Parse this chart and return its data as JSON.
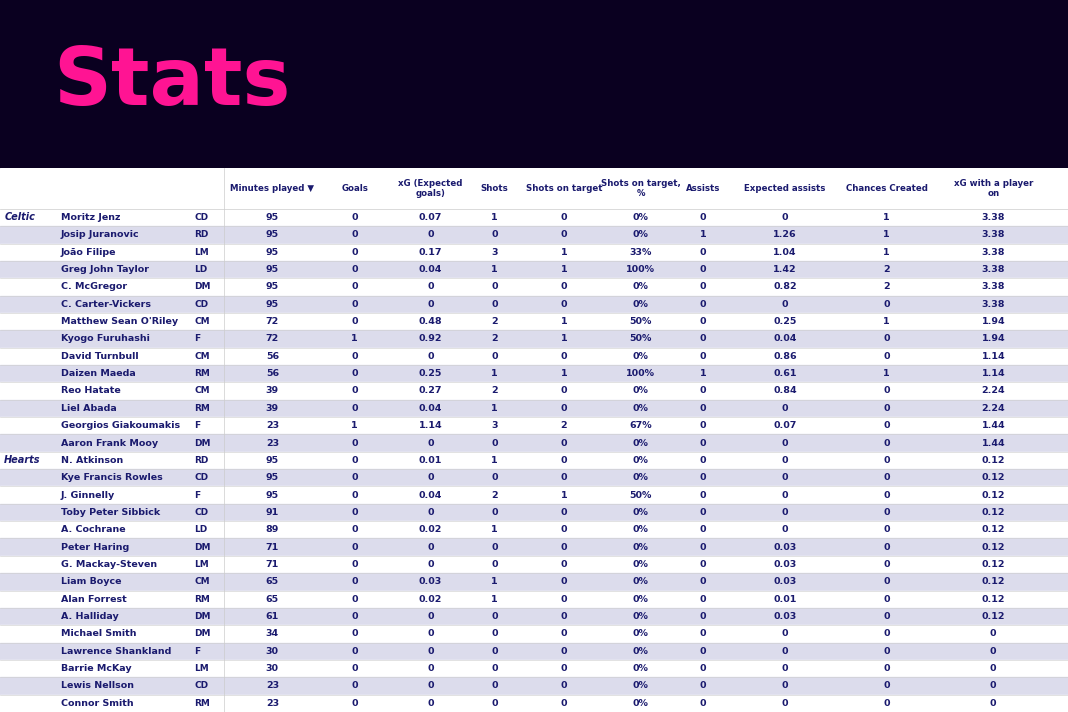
{
  "title": "Stats",
  "title_color": "#FF1493",
  "bg_color": "#0a0020",
  "table_bg": "#ffffff",
  "columns": [
    "Minutes played ▼",
    "Goals",
    "xG (Expected\ngoals)",
    "Shots",
    "Shots on target",
    "Shots on target,\n%",
    "Assists",
    "Expected assists",
    "Chances Created",
    "xG with a player\non"
  ],
  "teams": {
    "Celtic": [
      {
        "name": "Moritz Jenz",
        "pos": "CD",
        "mins": 95,
        "goals": 0,
        "xg": 0.07,
        "shots": 1,
        "sot": 0,
        "sot_pct": "0%",
        "assists": 0,
        "xa": 0,
        "cc": 1,
        "xgp": 3.38
      },
      {
        "name": "Josip Juranovic",
        "pos": "RD",
        "mins": 95,
        "goals": 0,
        "xg": 0,
        "shots": 0,
        "sot": 0,
        "sot_pct": "0%",
        "assists": 1,
        "xa": 1.26,
        "cc": 1,
        "xgp": 3.38
      },
      {
        "name": "João Filipe",
        "pos": "LM",
        "mins": 95,
        "goals": 0,
        "xg": 0.17,
        "shots": 3,
        "sot": 1,
        "sot_pct": "33%",
        "assists": 0,
        "xa": 1.04,
        "cc": 1,
        "xgp": 3.38
      },
      {
        "name": "Greg John Taylor",
        "pos": "LD",
        "mins": 95,
        "goals": 0,
        "xg": 0.04,
        "shots": 1,
        "sot": 1,
        "sot_pct": "100%",
        "assists": 0,
        "xa": 1.42,
        "cc": 2,
        "xgp": 3.38
      },
      {
        "name": "C. McGregor",
        "pos": "DM",
        "mins": 95,
        "goals": 0,
        "xg": 0,
        "shots": 0,
        "sot": 0,
        "sot_pct": "0%",
        "assists": 0,
        "xa": 0.82,
        "cc": 2,
        "xgp": 3.38
      },
      {
        "name": "C. Carter-Vickers",
        "pos": "CD",
        "mins": 95,
        "goals": 0,
        "xg": 0,
        "shots": 0,
        "sot": 0,
        "sot_pct": "0%",
        "assists": 0,
        "xa": 0,
        "cc": 0,
        "xgp": 3.38
      },
      {
        "name": "Matthew Sean O'Riley",
        "pos": "CM",
        "mins": 72,
        "goals": 0,
        "xg": 0.48,
        "shots": 2,
        "sot": 1,
        "sot_pct": "50%",
        "assists": 0,
        "xa": 0.25,
        "cc": 1,
        "xgp": 1.94
      },
      {
        "name": "Kyogo Furuhashi",
        "pos": "F",
        "mins": 72,
        "goals": 1,
        "xg": 0.92,
        "shots": 2,
        "sot": 1,
        "sot_pct": "50%",
        "assists": 0,
        "xa": 0.04,
        "cc": 0,
        "xgp": 1.94
      },
      {
        "name": "David Turnbull",
        "pos": "CM",
        "mins": 56,
        "goals": 0,
        "xg": 0,
        "shots": 0,
        "sot": 0,
        "sot_pct": "0%",
        "assists": 0,
        "xa": 0.86,
        "cc": 0,
        "xgp": 1.14
      },
      {
        "name": "Daizen Maeda",
        "pos": "RM",
        "mins": 56,
        "goals": 0,
        "xg": 0.25,
        "shots": 1,
        "sot": 1,
        "sot_pct": "100%",
        "assists": 1,
        "xa": 0.61,
        "cc": 1,
        "xgp": 1.14
      },
      {
        "name": "Reo Hatate",
        "pos": "CM",
        "mins": 39,
        "goals": 0,
        "xg": 0.27,
        "shots": 2,
        "sot": 0,
        "sot_pct": "0%",
        "assists": 0,
        "xa": 0.84,
        "cc": 0,
        "xgp": 2.24
      },
      {
        "name": "Liel Abada",
        "pos": "RM",
        "mins": 39,
        "goals": 0,
        "xg": 0.04,
        "shots": 1,
        "sot": 0,
        "sot_pct": "0%",
        "assists": 0,
        "xa": 0,
        "cc": 0,
        "xgp": 2.24
      },
      {
        "name": "Georgios Giakoumakis",
        "pos": "F",
        "mins": 23,
        "goals": 1,
        "xg": 1.14,
        "shots": 3,
        "sot": 2,
        "sot_pct": "67%",
        "assists": 0,
        "xa": 0.07,
        "cc": 0,
        "xgp": 1.44
      },
      {
        "name": "Aaron Frank Mooy",
        "pos": "DM",
        "mins": 23,
        "goals": 0,
        "xg": 0,
        "shots": 0,
        "sot": 0,
        "sot_pct": "0%",
        "assists": 0,
        "xa": 0,
        "cc": 0,
        "xgp": 1.44
      }
    ],
    "Hearts": [
      {
        "name": "N. Atkinson",
        "pos": "RD",
        "mins": 95,
        "goals": 0,
        "xg": 0.01,
        "shots": 1,
        "sot": 0,
        "sot_pct": "0%",
        "assists": 0,
        "xa": 0,
        "cc": 0,
        "xgp": 0.12
      },
      {
        "name": "Kye Francis Rowles",
        "pos": "CD",
        "mins": 95,
        "goals": 0,
        "xg": 0,
        "shots": 0,
        "sot": 0,
        "sot_pct": "0%",
        "assists": 0,
        "xa": 0,
        "cc": 0,
        "xgp": 0.12
      },
      {
        "name": "J. Ginnelly",
        "pos": "F",
        "mins": 95,
        "goals": 0,
        "xg": 0.04,
        "shots": 2,
        "sot": 1,
        "sot_pct": "50%",
        "assists": 0,
        "xa": 0,
        "cc": 0,
        "xgp": 0.12
      },
      {
        "name": "Toby Peter Sibbick",
        "pos": "CD",
        "mins": 91,
        "goals": 0,
        "xg": 0,
        "shots": 0,
        "sot": 0,
        "sot_pct": "0%",
        "assists": 0,
        "xa": 0,
        "cc": 0,
        "xgp": 0.12
      },
      {
        "name": "A. Cochrane",
        "pos": "LD",
        "mins": 89,
        "goals": 0,
        "xg": 0.02,
        "shots": 1,
        "sot": 0,
        "sot_pct": "0%",
        "assists": 0,
        "xa": 0,
        "cc": 0,
        "xgp": 0.12
      },
      {
        "name": "Peter Haring",
        "pos": "DM",
        "mins": 71,
        "goals": 0,
        "xg": 0,
        "shots": 0,
        "sot": 0,
        "sot_pct": "0%",
        "assists": 0,
        "xa": 0.03,
        "cc": 0,
        "xgp": 0.12
      },
      {
        "name": "G. Mackay-Steven",
        "pos": "LM",
        "mins": 71,
        "goals": 0,
        "xg": 0,
        "shots": 0,
        "sot": 0,
        "sot_pct": "0%",
        "assists": 0,
        "xa": 0.03,
        "cc": 0,
        "xgp": 0.12
      },
      {
        "name": "Liam Boyce",
        "pos": "CM",
        "mins": 65,
        "goals": 0,
        "xg": 0.03,
        "shots": 1,
        "sot": 0,
        "sot_pct": "0%",
        "assists": 0,
        "xa": 0.03,
        "cc": 0,
        "xgp": 0.12
      },
      {
        "name": "Alan Forrest",
        "pos": "RM",
        "mins": 65,
        "goals": 0,
        "xg": 0.02,
        "shots": 1,
        "sot": 0,
        "sot_pct": "0%",
        "assists": 0,
        "xa": 0.01,
        "cc": 0,
        "xgp": 0.12
      },
      {
        "name": "A. Halliday",
        "pos": "DM",
        "mins": 61,
        "goals": 0,
        "xg": 0,
        "shots": 0,
        "sot": 0,
        "sot_pct": "0%",
        "assists": 0,
        "xa": 0.03,
        "cc": 0,
        "xgp": 0.12
      },
      {
        "name": "Michael Smith",
        "pos": "DM",
        "mins": 34,
        "goals": 0,
        "xg": 0,
        "shots": 0,
        "sot": 0,
        "sot_pct": "0%",
        "assists": 0,
        "xa": 0,
        "cc": 0,
        "xgp": 0
      },
      {
        "name": "Lawrence Shankland",
        "pos": "F",
        "mins": 30,
        "goals": 0,
        "xg": 0,
        "shots": 0,
        "sot": 0,
        "sot_pct": "0%",
        "assists": 0,
        "xa": 0,
        "cc": 0,
        "xgp": 0
      },
      {
        "name": "Barrie McKay",
        "pos": "LM",
        "mins": 30,
        "goals": 0,
        "xg": 0,
        "shots": 0,
        "sot": 0,
        "sot_pct": "0%",
        "assists": 0,
        "xa": 0,
        "cc": 0,
        "xgp": 0
      },
      {
        "name": "Lewis Nellson",
        "pos": "CD",
        "mins": 23,
        "goals": 0,
        "xg": 0,
        "shots": 0,
        "sot": 0,
        "sot_pct": "0%",
        "assists": 0,
        "xa": 0,
        "cc": 0,
        "xgp": 0
      },
      {
        "name": "Connor Smith",
        "pos": "RM",
        "mins": 23,
        "goals": 0,
        "xg": 0,
        "shots": 0,
        "sot": 0,
        "sot_pct": "0%",
        "assists": 0,
        "xa": 0,
        "cc": 0,
        "xgp": 0
      }
    ]
  },
  "text_color": "#1a1a6e",
  "header_text_color": "#1a1a6e",
  "line_color": "#cccccc",
  "row_colors": [
    "#ffffff",
    "#dcdcec"
  ],
  "team_label_color": "#1a1a6e"
}
